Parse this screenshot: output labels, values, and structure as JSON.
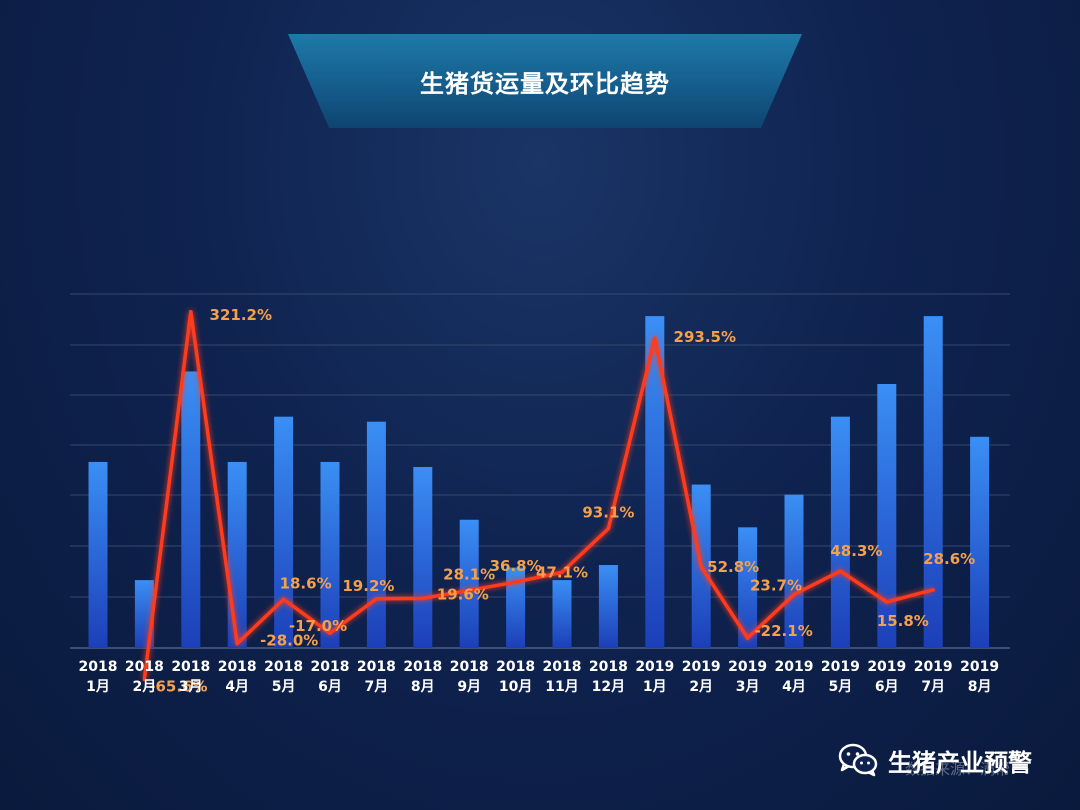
{
  "chart_data": {
    "type": "bar",
    "title": "生猪货运量及环比趋势",
    "categories": [
      [
        "2018",
        "1月"
      ],
      [
        "2018",
        "2月"
      ],
      [
        "2018",
        "3月"
      ],
      [
        "2018",
        "4月"
      ],
      [
        "2018",
        "5月"
      ],
      [
        "2018",
        "6月"
      ],
      [
        "2018",
        "7月"
      ],
      [
        "2018",
        "8月"
      ],
      [
        "2018",
        "9月"
      ],
      [
        "2018",
        "10月"
      ],
      [
        "2018",
        "11月"
      ],
      [
        "2018",
        "12月"
      ],
      [
        "2019",
        "1月"
      ],
      [
        "2019",
        "2月"
      ],
      [
        "2019",
        "3月"
      ],
      [
        "2019",
        "4月"
      ],
      [
        "2019",
        "5月"
      ],
      [
        "2019",
        "6月"
      ],
      [
        "2019",
        "7月"
      ],
      [
        "2019",
        "8月"
      ]
    ],
    "grid": true,
    "series": [
      {
        "type": "bar",
        "color": "#2a6fd8",
        "values": [
          3.7,
          1.35,
          5.5,
          3.7,
          4.6,
          3.7,
          4.5,
          3.6,
          2.55,
          1.6,
          1.35,
          1.65,
          6.6,
          3.25,
          2.4,
          3.05,
          4.6,
          5.25,
          6.6,
          4.2
        ]
      },
      {
        "type": "line",
        "color": "#ff3b1f",
        "values": [
          null,
          -65.6,
          321.2,
          -28.0,
          18.6,
          -17.0,
          19.2,
          19.6,
          28.1,
          36.8,
          47.1,
          93.1,
          293.5,
          52.8,
          -22.1,
          23.7,
          48.3,
          15.8,
          28.6,
          null
        ],
        "labels": [
          null,
          "-65.6%",
          "321.2%",
          "-28.0%",
          "18.6%",
          "-17.0%",
          "19.2%",
          "19.6%",
          "28.1%",
          "36.8%",
          "47.1%",
          "93.1%",
          "293.5%",
          "52.8%",
          "-22.1%",
          "23.7%",
          "48.3%",
          "15.8%",
          "28.6%",
          null
        ]
      }
    ]
  },
  "watermark": {
    "icon": "wechat-icon",
    "text": "生猪产业预警",
    "source_note": "数据来源：满帮"
  }
}
